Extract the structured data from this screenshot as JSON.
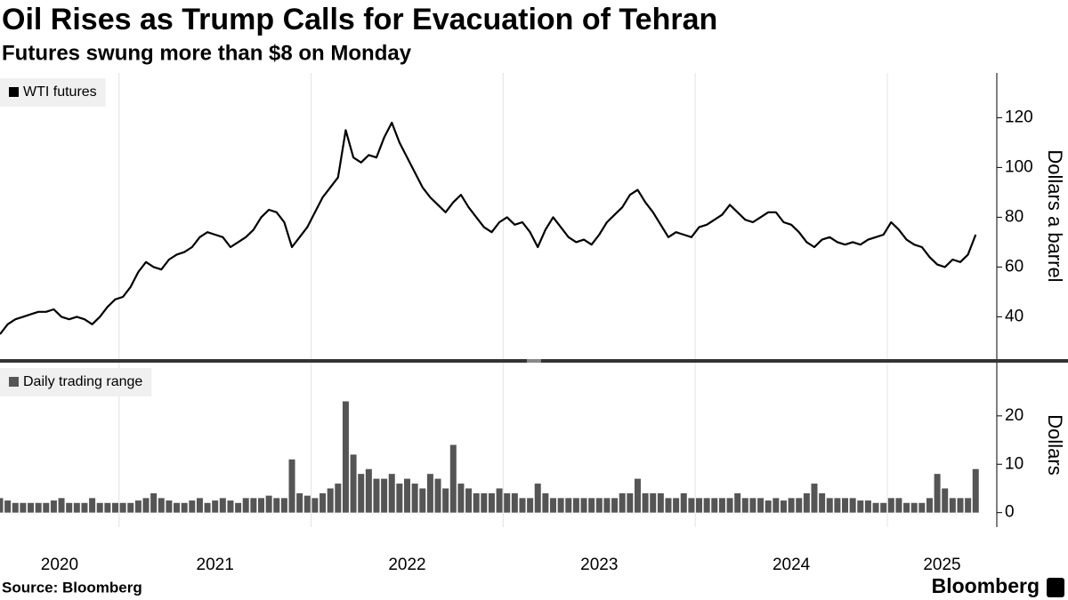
{
  "chart_data": [
    {
      "type": "line",
      "title": "Oil Rises as Trump Calls for Evacuation of Tehran",
      "subtitle": "Futures swung more than $8 on Monday",
      "y_label": "Dollars a barrel",
      "x": [
        2020.38,
        2020.42,
        2020.46,
        2020.5,
        2020.54,
        2020.58,
        2020.62,
        2020.66,
        2020.7,
        2020.74,
        2020.78,
        2020.82,
        2020.86,
        2020.9,
        2020.94,
        2020.98,
        2021.02,
        2021.06,
        2021.1,
        2021.14,
        2021.18,
        2021.22,
        2021.26,
        2021.3,
        2021.34,
        2021.38,
        2021.42,
        2021.46,
        2021.5,
        2021.54,
        2021.58,
        2021.62,
        2021.66,
        2021.7,
        2021.74,
        2021.78,
        2021.82,
        2021.86,
        2021.9,
        2021.94,
        2021.98,
        2022.02,
        2022.06,
        2022.1,
        2022.14,
        2022.18,
        2022.22,
        2022.26,
        2022.3,
        2022.34,
        2022.38,
        2022.42,
        2022.46,
        2022.5,
        2022.54,
        2022.58,
        2022.62,
        2022.66,
        2022.7,
        2022.74,
        2022.78,
        2022.82,
        2022.86,
        2022.9,
        2022.94,
        2022.98,
        2023.02,
        2023.06,
        2023.1,
        2023.14,
        2023.18,
        2023.22,
        2023.26,
        2023.3,
        2023.34,
        2023.38,
        2023.42,
        2023.46,
        2023.5,
        2023.54,
        2023.58,
        2023.62,
        2023.66,
        2023.7,
        2023.74,
        2023.78,
        2023.82,
        2023.86,
        2023.9,
        2023.94,
        2023.98,
        2024.02,
        2024.06,
        2024.1,
        2024.14,
        2024.18,
        2024.22,
        2024.26,
        2024.3,
        2024.34,
        2024.38,
        2024.42,
        2024.46,
        2024.5,
        2024.54,
        2024.58,
        2024.62,
        2024.66,
        2024.7,
        2024.74,
        2024.78,
        2024.82,
        2024.86,
        2024.9,
        2024.94,
        2024.98,
        2025.02,
        2025.06,
        2025.1,
        2025.14,
        2025.18,
        2025.22,
        2025.26,
        2025.3,
        2025.34,
        2025.38,
        2025.42,
        2025.46
      ],
      "series": [
        {
          "name": "WTI futures",
          "color": "#000000",
          "values": [
            33,
            37,
            39,
            40,
            41,
            42,
            42,
            43,
            40,
            39,
            40,
            39,
            37,
            40,
            44,
            47,
            48,
            52,
            58,
            62,
            60,
            59,
            63,
            65,
            66,
            68,
            72,
            74,
            73,
            72,
            68,
            70,
            72,
            75,
            80,
            83,
            82,
            78,
            68,
            72,
            76,
            82,
            88,
            92,
            96,
            115,
            104,
            102,
            105,
            104,
            112,
            118,
            110,
            104,
            98,
            92,
            88,
            85,
            82,
            86,
            89,
            84,
            80,
            76,
            74,
            78,
            80,
            77,
            78,
            74,
            68,
            75,
            80,
            76,
            72,
            70,
            71,
            69,
            73,
            78,
            81,
            84,
            89,
            91,
            86,
            82,
            77,
            72,
            74,
            73,
            72,
            76,
            77,
            79,
            81,
            85,
            82,
            79,
            78,
            80,
            82,
            82,
            78,
            77,
            74,
            70,
            68,
            71,
            72,
            70,
            69,
            70,
            69,
            71,
            72,
            73,
            78,
            75,
            71,
            69,
            68,
            64,
            61,
            60,
            63,
            62,
            65,
            73
          ]
        }
      ],
      "xlim": [
        2020.38,
        2025.57
      ],
      "ylim": [
        23,
        138
      ],
      "yticks": [
        40,
        60,
        80,
        100,
        120
      ]
    },
    {
      "type": "bar",
      "y_label": "Dollars",
      "x": [
        2020.38,
        2020.42,
        2020.46,
        2020.5,
        2020.54,
        2020.58,
        2020.62,
        2020.66,
        2020.7,
        2020.74,
        2020.78,
        2020.82,
        2020.86,
        2020.9,
        2020.94,
        2020.98,
        2021.02,
        2021.06,
        2021.1,
        2021.14,
        2021.18,
        2021.22,
        2021.26,
        2021.3,
        2021.34,
        2021.38,
        2021.42,
        2021.46,
        2021.5,
        2021.54,
        2021.58,
        2021.62,
        2021.66,
        2021.7,
        2021.74,
        2021.78,
        2021.82,
        2021.86,
        2021.9,
        2021.94,
        2021.98,
        2022.02,
        2022.06,
        2022.1,
        2022.14,
        2022.18,
        2022.22,
        2022.26,
        2022.3,
        2022.34,
        2022.38,
        2022.42,
        2022.46,
        2022.5,
        2022.54,
        2022.58,
        2022.62,
        2022.66,
        2022.7,
        2022.74,
        2022.78,
        2022.82,
        2022.86,
        2022.9,
        2022.94,
        2022.98,
        2023.02,
        2023.06,
        2023.1,
        2023.14,
        2023.18,
        2023.22,
        2023.26,
        2023.3,
        2023.34,
        2023.38,
        2023.42,
        2023.46,
        2023.5,
        2023.54,
        2023.58,
        2023.62,
        2023.66,
        2023.7,
        2023.74,
        2023.78,
        2023.82,
        2023.86,
        2023.9,
        2023.94,
        2023.98,
        2024.02,
        2024.06,
        2024.1,
        2024.14,
        2024.18,
        2024.22,
        2024.26,
        2024.3,
        2024.34,
        2024.38,
        2024.42,
        2024.46,
        2024.5,
        2024.54,
        2024.58,
        2024.62,
        2024.66,
        2024.7,
        2024.74,
        2024.78,
        2024.82,
        2024.86,
        2024.9,
        2024.94,
        2024.98,
        2025.02,
        2025.06,
        2025.1,
        2025.14,
        2025.18,
        2025.22,
        2025.26,
        2025.3,
        2025.34,
        2025.38,
        2025.42,
        2025.46
      ],
      "series": [
        {
          "name": "Daily trading range",
          "color": "#555555",
          "values": [
            3,
            2.5,
            2,
            2,
            2,
            2,
            2,
            2.5,
            3,
            2,
            2,
            2,
            3,
            2,
            2,
            2,
            2,
            2,
            2.5,
            3,
            4,
            3,
            2.5,
            2,
            2,
            2.5,
            3,
            2,
            2.5,
            3,
            2.5,
            2,
            3,
            3,
            3,
            3.5,
            3,
            3,
            11,
            4,
            3.5,
            3,
            4,
            5,
            6,
            23,
            12,
            8,
            9,
            7,
            7,
            8,
            6,
            7,
            6,
            5,
            8,
            7,
            5,
            14,
            6,
            5,
            4,
            4,
            4,
            5,
            4,
            4,
            3,
            3,
            6,
            4,
            3,
            3,
            3,
            3,
            3,
            3,
            3,
            3,
            3,
            4,
            4,
            7,
            4,
            4,
            4,
            3,
            3,
            4,
            3,
            3,
            3,
            3,
            3,
            3,
            4,
            3,
            3,
            3,
            2.5,
            3,
            2.5,
            3,
            3,
            4,
            6,
            4,
            3,
            3,
            3,
            3,
            2.5,
            2.5,
            2,
            2,
            3,
            3,
            2,
            2,
            2,
            3,
            8,
            5,
            3,
            3,
            3,
            9
          ]
        }
      ],
      "xlim": [
        2020.38,
        2025.57
      ],
      "xticks": [
        2020,
        2021,
        2022,
        2023,
        2024,
        2025
      ],
      "ylim": [
        -3,
        31
      ],
      "yticks": [
        0,
        10,
        20
      ]
    }
  ],
  "source": "Source: Bloomberg",
  "brand": "Bloomberg"
}
